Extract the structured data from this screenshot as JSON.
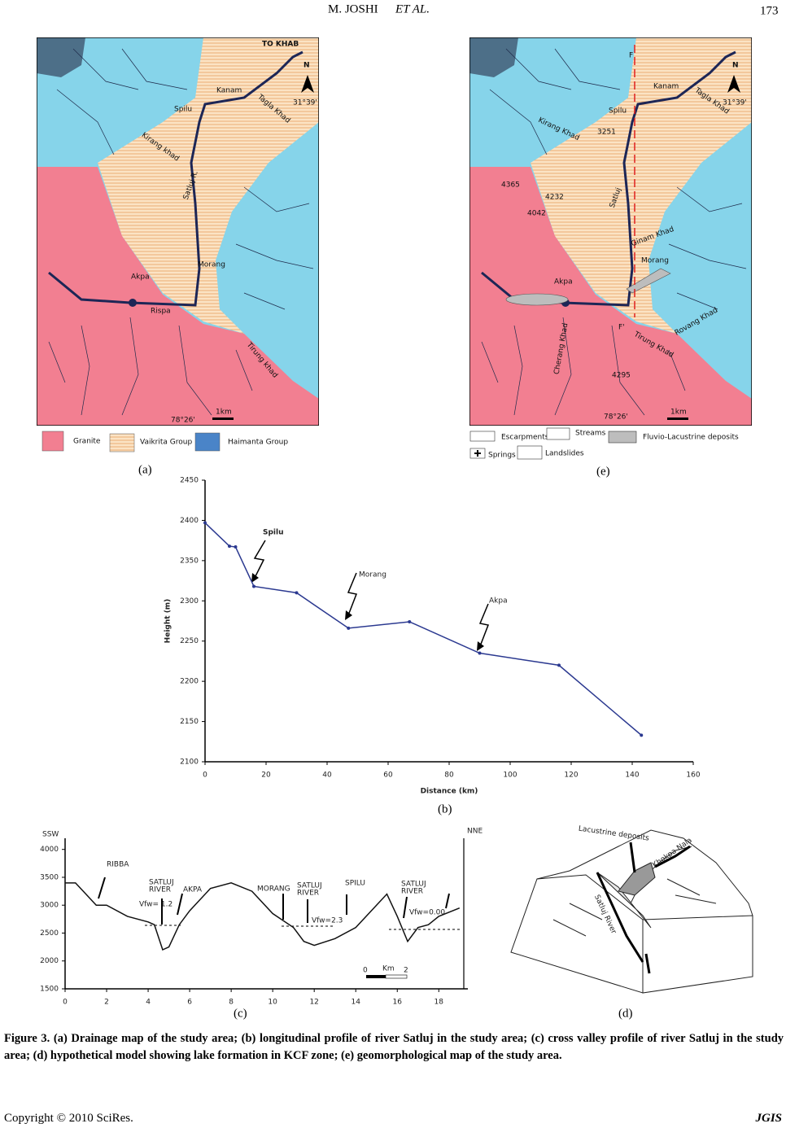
{
  "header": {
    "author": "M. JOSHI",
    "et_al": "ET AL.",
    "page": "173"
  },
  "map_a": {
    "panel": "(a)",
    "labels": [
      "TO KHAB",
      "N",
      "Kanam",
      "31°39'",
      "Tagla Khad",
      "Spilu",
      "Kirang khad",
      "Satluj R.",
      "Morang",
      "Akpa",
      "Rispa",
      "Tirung khad",
      "78°26'",
      "1km"
    ],
    "legend": [
      "Granite",
      "Vaikrita Group",
      "Haimanta Group"
    ]
  },
  "map_e": {
    "panel": "(e)",
    "labels": [
      "F",
      "N",
      "Kanam",
      "Tagla Khad",
      "31°39'",
      "Spilu",
      "Kirang Khad",
      "3251",
      "4365",
      "4232",
      "4042",
      "Satluj",
      "Ginam Khad",
      "Morang",
      "Akpa",
      "Cherang Khad",
      "F'",
      "Rovang Khad",
      "Tirung Khad",
      "4295",
      "78°26'",
      "1km"
    ],
    "legend": [
      "Escarpments",
      "Streams",
      "Fluvio-Lacustrine deposits",
      "Springs",
      "Landslides"
    ]
  },
  "chart_data": [
    {
      "type": "line",
      "panel": "(b)",
      "xlabel": "Distance (km)",
      "ylabel": "Height (m)",
      "x": [
        0,
        8,
        10,
        16,
        30,
        47,
        67,
        90,
        116,
        143
      ],
      "series": [
        {
          "name": "Satluj",
          "color": "#2b3990",
          "values": [
            2397,
            2368,
            2367,
            2318,
            2310,
            2266,
            2274,
            2235,
            2220,
            2133
          ]
        }
      ],
      "markers": true,
      "xlim": [
        0,
        160
      ],
      "xticks": [
        0,
        20,
        40,
        60,
        80,
        100,
        120,
        140,
        160
      ],
      "ylim": [
        2100,
        2450
      ],
      "yticks": [
        2100,
        2150,
        2200,
        2250,
        2300,
        2350,
        2400,
        2450
      ],
      "annotations": [
        "Spilu",
        "Morang",
        "Akpa"
      ]
    },
    {
      "type": "line",
      "panel": "(c)",
      "x": [
        0,
        0.5,
        1,
        1.5,
        2,
        3,
        4,
        4.3,
        4.7,
        5,
        5.5,
        6,
        7,
        8,
        9,
        10,
        11,
        11.5,
        12,
        13,
        14,
        15,
        15.5,
        16,
        16.5,
        17,
        17.5,
        18,
        19
      ],
      "series": [
        {
          "name": "Cross valley profile",
          "color": "#111111",
          "values": [
            3400,
            3400,
            3200,
            3000,
            3000,
            2800,
            2700,
            2650,
            2200,
            2250,
            2650,
            2900,
            3300,
            3400,
            3250,
            2850,
            2600,
            2350,
            2280,
            2400,
            2600,
            3000,
            3200,
            2800,
            2350,
            2600,
            2650,
            2800,
            2950
          ]
        }
      ],
      "markers": false,
      "xlim": [
        0,
        19.4
      ],
      "xticks": [
        0,
        2,
        4,
        6,
        8,
        10,
        12,
        14,
        16,
        18
      ],
      "ylim": [
        1500,
        4200
      ],
      "yticks": [
        1500,
        2000,
        2500,
        3000,
        3500,
        4000
      ],
      "annotations": [
        "SSW",
        "NNE",
        "RIBBA",
        "SATLUJ",
        "RIVER",
        "AKPA",
        "Vfw= 1.2",
        "MORANG",
        "SATLUJ",
        "RIVER",
        "Vfw=2.3",
        "SPILU",
        "SATLUJ",
        "RIVER",
        "Vfw=0.00",
        "0",
        "Km",
        "2"
      ]
    }
  ],
  "figure_d": {
    "panel": "(d)",
    "labels": [
      "Lacustrine deposits",
      "Khokpa Nala",
      "Satluj River"
    ]
  },
  "caption": {
    "label": "Figure 3.",
    "text": "(a) Drainage map of the study area; (b) longitudinal profile of river Satluj in the study area; (c) cross valley profile of river Satluj in the study area; (d) hypothetical model showing lake formation in KCF zone; (e) geomorphological map of the study area."
  },
  "footer": {
    "copyright": "Copyright © 2010 SciRes.",
    "journal": "JGIS"
  }
}
